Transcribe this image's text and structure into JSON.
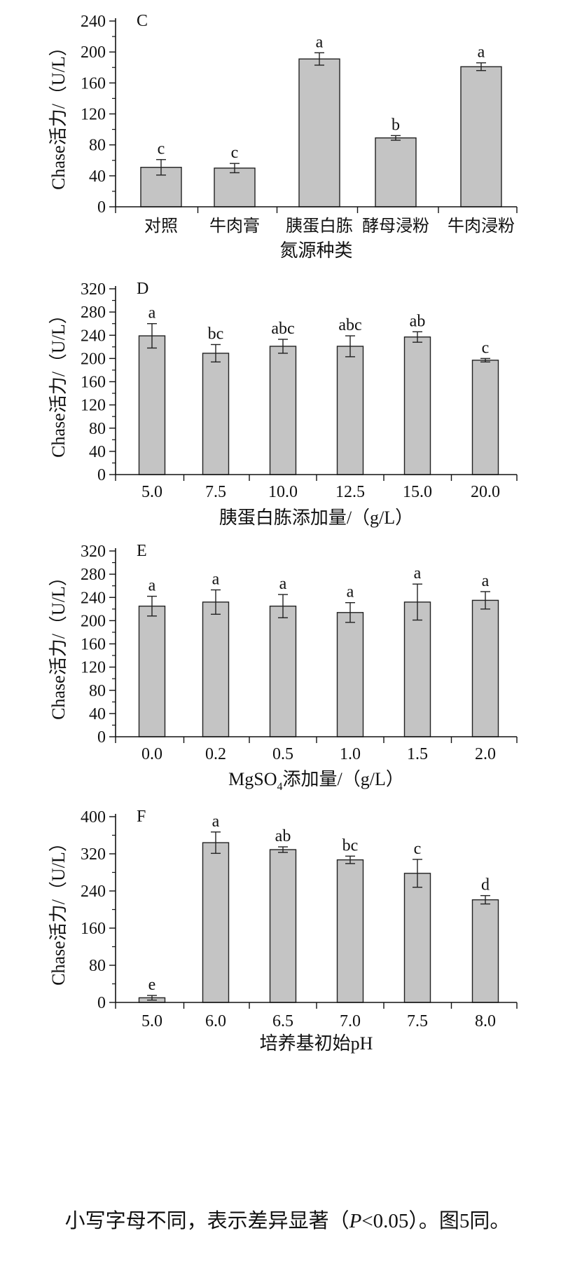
{
  "chart_data": [
    {
      "type": "bar",
      "panel": "C",
      "categories": [
        "对照",
        "牛肉膏",
        "胰蛋白胨",
        "酵母浸粉",
        "牛肉浸粉"
      ],
      "values": [
        51,
        50,
        191,
        89,
        181
      ],
      "errors": [
        10,
        6,
        8,
        3,
        5
      ],
      "letters": [
        "c",
        "c",
        "a",
        "b",
        "a"
      ],
      "xlabel": "氮源种类",
      "ylabel": "Chase活力/（U/L）",
      "ylim": [
        0,
        240
      ],
      "yticks": [
        0,
        40,
        80,
        120,
        160,
        200,
        240
      ],
      "bar_color": "#c4c4c4"
    },
    {
      "type": "bar",
      "panel": "D",
      "categories": [
        "5.0",
        "7.5",
        "10.0",
        "12.5",
        "15.0",
        "20.0"
      ],
      "values": [
        239,
        209,
        221,
        221,
        237,
        197
      ],
      "errors": [
        21,
        15,
        12,
        18,
        9,
        3
      ],
      "letters": [
        "a",
        "bc",
        "abc",
        "abc",
        "ab",
        "c"
      ],
      "xlabel": "胰蛋白胨添加量/（g/L）",
      "ylabel": "Chase活力/（U/L）",
      "ylim": [
        0,
        320
      ],
      "yticks": [
        0,
        40,
        80,
        120,
        160,
        200,
        240,
        280,
        320
      ],
      "bar_color": "#c4c4c4"
    },
    {
      "type": "bar",
      "panel": "E",
      "categories": [
        "0.0",
        "0.2",
        "0.5",
        "1.0",
        "1.5",
        "2.0"
      ],
      "values": [
        225,
        232,
        225,
        214,
        232,
        235
      ],
      "errors": [
        17,
        21,
        20,
        17,
        31,
        15
      ],
      "letters": [
        "a",
        "a",
        "a",
        "a",
        "a",
        "a"
      ],
      "xlabel_prefix": "MgSO",
      "xlabel_sub": "4",
      "xlabel_suffix": "添加量/（g/L）",
      "ylabel": "Chase活力/（U/L）",
      "ylim": [
        0,
        320
      ],
      "yticks": [
        0,
        40,
        80,
        120,
        160,
        200,
        240,
        280,
        320
      ],
      "bar_color": "#c4c4c4"
    },
    {
      "type": "bar",
      "panel": "F",
      "categories": [
        "5.0",
        "6.0",
        "6.5",
        "7.0",
        "7.5",
        "8.0"
      ],
      "values": [
        10,
        344,
        329,
        307,
        278,
        221
      ],
      "errors": [
        5,
        23,
        6,
        8,
        30,
        9
      ],
      "letters": [
        "e",
        "a",
        "ab",
        "bc",
        "c",
        "d"
      ],
      "xlabel": "培养基初始pH",
      "ylabel": "Chase活力/（U/L）",
      "ylim": [
        0,
        400
      ],
      "yticks": [
        0,
        80,
        160,
        240,
        320,
        400
      ],
      "bar_color": "#c4c4c4"
    }
  ],
  "caption": {
    "prefix": "小写字母不同，表示差异显著（",
    "p_symbol": "P",
    "suffix": "<0.05）。图5同。"
  }
}
